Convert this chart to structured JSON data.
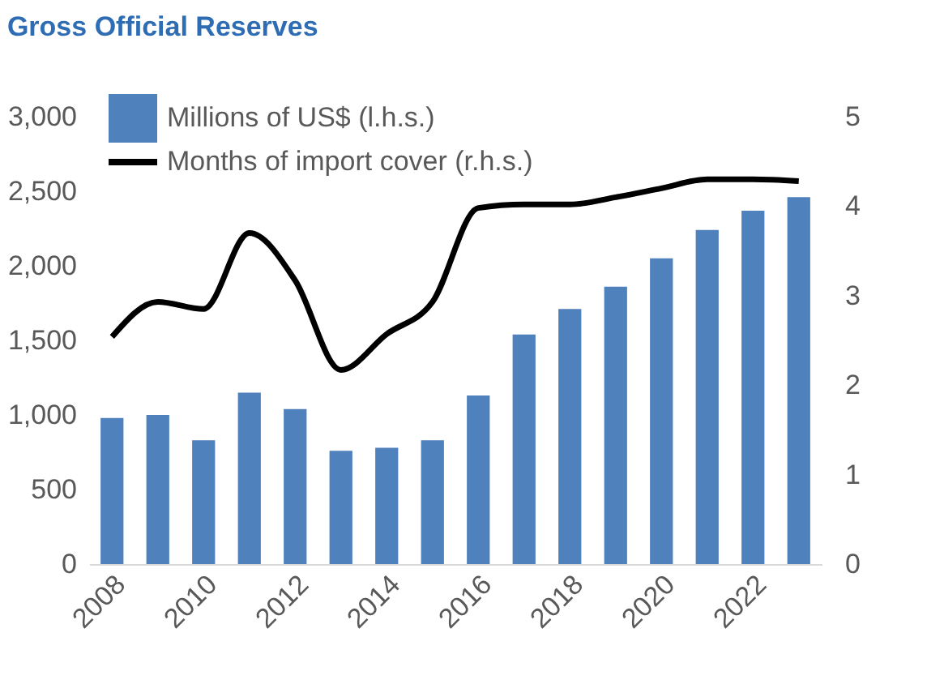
{
  "chart_data": {
    "type": "bar",
    "title": "Gross Official Reserves",
    "categories": [
      "2008",
      null,
      "2010",
      null,
      "2012",
      null,
      "2014",
      null,
      "2016",
      null,
      "2018",
      null,
      "2020",
      null,
      "2022",
      null
    ],
    "series": [
      {
        "name": "Millions of US$ (l.h.s.)",
        "color": "#4f81bd",
        "values": [
          980,
          1000,
          830,
          1150,
          1040,
          760,
          780,
          830,
          1130,
          1540,
          1710,
          1860,
          2050,
          2240,
          2370,
          2460
        ]
      },
      {
        "name": "Months of import cover (r.h.s.)",
        "type": "line",
        "axis": "y2",
        "color": "#000000",
        "values": [
          2.54,
          2.93,
          2.85,
          3.7,
          3.17,
          2.17,
          2.57,
          2.93,
          3.98,
          4.02,
          4.02,
          4.1,
          4.2,
          4.3,
          4.3,
          4.28
        ]
      }
    ],
    "ylim": [
      0,
      3000
    ],
    "yticks": [
      {
        "value": 0,
        "label": "0"
      },
      {
        "value": 500,
        "label": "500"
      },
      {
        "value": 1000,
        "label": "1,000"
      },
      {
        "value": 1500,
        "label": "1,500"
      },
      {
        "value": 2000,
        "label": "2,000"
      },
      {
        "value": 2500,
        "label": "2,500"
      },
      {
        "value": 3000,
        "label": "3,000"
      }
    ],
    "y2lim": [
      0,
      5
    ],
    "y2ticks": [
      0,
      1,
      2,
      3,
      4,
      5
    ],
    "grid": false,
    "legend": "top left",
    "line_style": "solid",
    "marker": "none"
  }
}
